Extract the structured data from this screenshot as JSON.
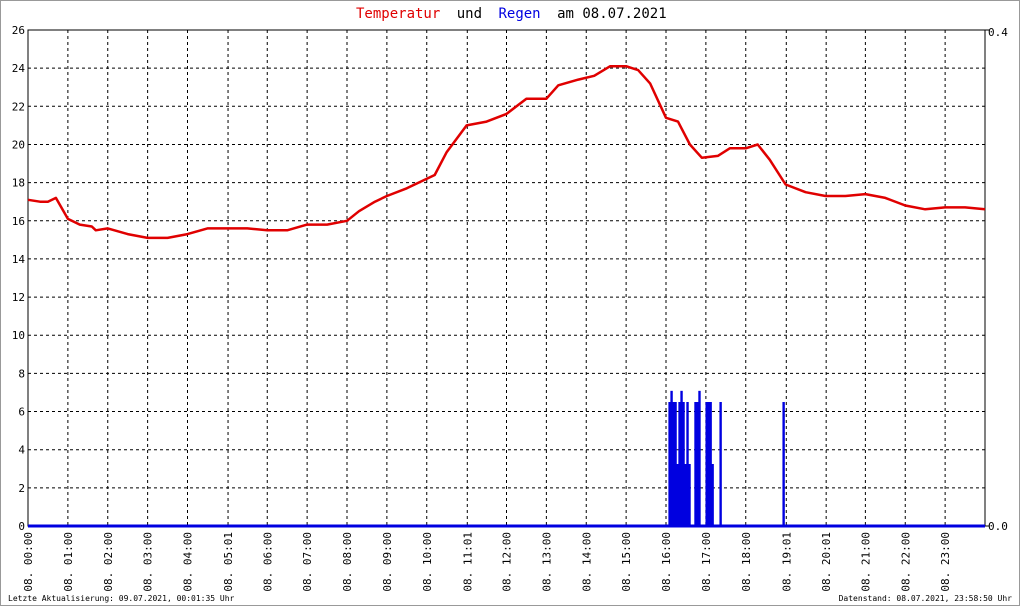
{
  "chart_data": {
    "type": "line",
    "title_connector": "und",
    "title_suffix": "am 08.07.2021",
    "footer_left": "Letzte Aktualisierung: 09.07.2021, 00:01:35 Uhr",
    "footer_right": "Datenstand: 08.07.2021, 23:58:50 Uhr",
    "xlim": [
      0,
      24
    ],
    "xticks": [
      {
        "value": 0,
        "label": "08. 00:00"
      },
      {
        "value": 1,
        "label": "08. 01:00"
      },
      {
        "value": 2,
        "label": "08. 02:00"
      },
      {
        "value": 3,
        "label": "08. 03:00"
      },
      {
        "value": 4,
        "label": "08. 04:00"
      },
      {
        "value": 5.0167,
        "label": "08. 05:01"
      },
      {
        "value": 6,
        "label": "08. 06:00"
      },
      {
        "value": 7,
        "label": "08. 07:00"
      },
      {
        "value": 8,
        "label": "08. 08:00"
      },
      {
        "value": 9,
        "label": "08. 09:00"
      },
      {
        "value": 10,
        "label": "08. 10:00"
      },
      {
        "value": 11.0167,
        "label": "08. 11:01"
      },
      {
        "value": 12,
        "label": "08. 12:00"
      },
      {
        "value": 13,
        "label": "08. 13:00"
      },
      {
        "value": 14,
        "label": "08. 14:00"
      },
      {
        "value": 15,
        "label": "08. 15:00"
      },
      {
        "value": 16,
        "label": "08. 16:00"
      },
      {
        "value": 17,
        "label": "08. 17:00"
      },
      {
        "value": 18,
        "label": "08. 18:00"
      },
      {
        "value": 19.0167,
        "label": "08. 19:01"
      },
      {
        "value": 20.0167,
        "label": "08. 20:01"
      },
      {
        "value": 21,
        "label": "08. 21:00"
      },
      {
        "value": 22,
        "label": "08. 22:00"
      },
      {
        "value": 23,
        "label": "08. 23:00"
      }
    ],
    "ylim": [
      0,
      26
    ],
    "yticks": [
      0,
      2,
      4,
      6,
      8,
      10,
      12,
      14,
      16,
      18,
      20,
      22,
      24,
      26
    ],
    "y2lim": [
      0,
      0.4
    ],
    "y2ticks": [
      {
        "value": 0,
        "label": "0.0"
      },
      0.4
    ],
    "grid": true,
    "series": [
      {
        "name": "Temperatur",
        "color": "#e00000",
        "kind": "line",
        "x": [
          0,
          0.3,
          0.5,
          0.7,
          1,
          1.3,
          1.6,
          1.7,
          2,
          2.5,
          3,
          3.5,
          4,
          4.5,
          5,
          5.5,
          6,
          6.5,
          7,
          7.5,
          8,
          8.3,
          8.7,
          9,
          9.5,
          10,
          10.2,
          10.5,
          11,
          11.5,
          12,
          12.5,
          13,
          13.3,
          13.8,
          14.2,
          14.6,
          15,
          15.3,
          15.6,
          16,
          16.3,
          16.6,
          16.9,
          17.3,
          17.6,
          18,
          18.3,
          18.6,
          19,
          19.5,
          20,
          20.5,
          21,
          21.5,
          22,
          22.5,
          23,
          23.5,
          24
        ],
        "values": [
          17.1,
          17.0,
          17.0,
          17.2,
          16.1,
          15.8,
          15.7,
          15.5,
          15.6,
          15.3,
          15.1,
          15.1,
          15.3,
          15.6,
          15.6,
          15.6,
          15.5,
          15.5,
          15.8,
          15.8,
          16.0,
          16.5,
          17.0,
          17.3,
          17.7,
          18.2,
          18.4,
          19.6,
          21.0,
          21.2,
          21.6,
          22.4,
          22.4,
          23.1,
          23.4,
          23.6,
          24.1,
          24.1,
          23.9,
          23.2,
          21.4,
          21.2,
          20.0,
          19.3,
          19.4,
          19.8,
          19.8,
          20.0,
          19.2,
          17.9,
          17.5,
          17.3,
          17.3,
          17.4,
          17.2,
          16.8,
          16.6,
          16.7,
          16.7,
          16.6
        ]
      },
      {
        "name": "Regen",
        "color": "#0000e0",
        "kind": "bar",
        "axis": "y2",
        "x": [
          16.09,
          16.14,
          16.19,
          16.24,
          16.29,
          16.34,
          16.39,
          16.44,
          16.49,
          16.54,
          16.59,
          16.74,
          16.79,
          16.84,
          17.02,
          17.07,
          17.12,
          17.17,
          17.37,
          18.95
        ],
        "values": [
          0.1,
          0.109,
          0.1,
          0.1,
          0.05,
          0.1,
          0.109,
          0.1,
          0.05,
          0.1,
          0.05,
          0.1,
          0.1,
          0.109,
          0.1,
          0.1,
          0.1,
          0.05,
          0.1,
          0.1
        ]
      }
    ]
  }
}
